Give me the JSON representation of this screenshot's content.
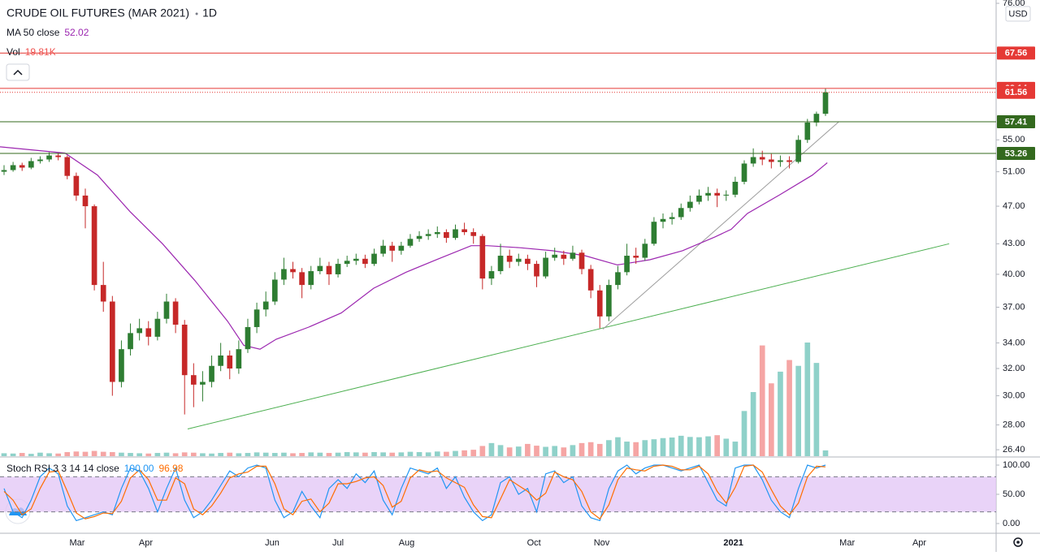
{
  "chart_data": {
    "type": "candlestick",
    "title": "CRUDE OIL FUTURES (MAR 2021)",
    "interval": "1D",
    "currency": "USD",
    "log": true,
    "grid": false,
    "up_color": "#2e7d32",
    "down_color": "#c62828",
    "xlim": [
      -0.45,
      109.8
    ],
    "xticks": [
      {
        "value": 8.1,
        "label": "Mar"
      },
      {
        "value": 15.7,
        "label": "Apr"
      },
      {
        "value": 29.7,
        "label": "Jun"
      },
      {
        "value": 37.0,
        "label": "Jul"
      },
      {
        "value": 44.6,
        "label": "Aug"
      },
      {
        "value": 58.7,
        "label": "Oct"
      },
      {
        "value": 66.2,
        "label": "Nov"
      },
      {
        "value": 80.8,
        "label": "2021",
        "bold": true
      },
      {
        "value": 93.4,
        "label": "Mar"
      },
      {
        "value": 101.4,
        "label": "Apr"
      }
    ],
    "ylim": [
      26,
      76.6
    ],
    "yticks": [
      {
        "value": 76,
        "label": "76.00"
      },
      {
        "value": 55,
        "label": "55.00"
      },
      {
        "value": 51,
        "label": "51.00"
      },
      {
        "value": 47,
        "label": "47.00"
      },
      {
        "value": 43,
        "label": "43.00"
      },
      {
        "value": 40,
        "label": "40.00"
      },
      {
        "value": 37,
        "label": "37.00"
      },
      {
        "value": 34,
        "label": "34.00"
      },
      {
        "value": 32,
        "label": "32.00"
      },
      {
        "value": 30,
        "label": "30.00"
      },
      {
        "value": 28,
        "label": "28.00"
      },
      {
        "value": 26.4,
        "label": "26.40"
      }
    ],
    "open": [
      51.0,
      51.2,
      51.8,
      51.5,
      52.3,
      52.5,
      53.0,
      52.8,
      50.5,
      48.2,
      47.0,
      39.0,
      37.5,
      31.0,
      33.5,
      34.8,
      35.2,
      34.5,
      36.0,
      37.5,
      35.5,
      31.5,
      30.8,
      31.0,
      32.2,
      33.0,
      32.0,
      33.5,
      35.3,
      36.8,
      37.5,
      39.5,
      40.5,
      40.2,
      39.0,
      40.3,
      40.8,
      40.0,
      41.0,
      41.3,
      41.5,
      41.0,
      42.0,
      42.8,
      42.3,
      42.8,
      43.5,
      43.8,
      44.0,
      44.2,
      43.6,
      44.5,
      44.2,
      43.8,
      39.6,
      40.3,
      41.8,
      41.2,
      41.5,
      41.0,
      39.8,
      41.6,
      41.9,
      41.5,
      42.1,
      40.5,
      38.5,
      36.2,
      39.0,
      40.2,
      41.8,
      41.6,
      43.0,
      45.3,
      45.6,
      45.8,
      46.8,
      47.5,
      48.2,
      48.5,
      48.2,
      48.3,
      49.8,
      52.0,
      52.8,
      52.5,
      52.2,
      52.4,
      52.2,
      55.0,
      57.3,
      58.5
    ],
    "high": [
      51.8,
      52.2,
      52.1,
      52.7,
      52.9,
      53.4,
      53.3,
      53.0,
      50.9,
      49.0,
      47.2,
      41.2,
      38.0,
      34.2,
      35.6,
      36.0,
      35.8,
      36.6,
      38.2,
      37.8,
      35.9,
      32.4,
      31.8,
      33.0,
      34.0,
      33.4,
      34.2,
      36.0,
      37.4,
      38.4,
      40.2,
      41.6,
      41.2,
      40.6,
      40.8,
      41.6,
      41.2,
      41.5,
      41.8,
      42.0,
      41.9,
      42.5,
      43.4,
      43.2,
      43.2,
      44.0,
      44.3,
      44.5,
      44.8,
      44.5,
      45.0,
      45.2,
      44.6,
      44.0,
      40.8,
      43.0,
      42.4,
      42.0,
      41.9,
      41.3,
      42.2,
      42.6,
      42.3,
      42.8,
      42.4,
      40.9,
      39.0,
      39.5,
      40.8,
      43.0,
      42.6,
      43.5,
      45.8,
      46.2,
      46.3,
      47.3,
      48.2,
      48.9,
      49.2,
      49.0,
      48.8,
      50.4,
      52.4,
      53.9,
      53.6,
      53.2,
      53.0,
      52.9,
      55.6,
      57.8,
      58.8,
      62.1
    ],
    "low": [
      50.6,
      51.0,
      51.1,
      51.3,
      52.0,
      52.2,
      52.4,
      50.1,
      47.6,
      44.6,
      38.5,
      36.6,
      30.0,
      30.6,
      33.0,
      34.2,
      33.8,
      34.2,
      35.6,
      34.8,
      28.7,
      29.2,
      29.6,
      30.6,
      31.8,
      31.2,
      31.6,
      33.2,
      34.8,
      36.2,
      37.2,
      39.0,
      39.6,
      37.8,
      38.6,
      40.0,
      39.0,
      39.7,
      40.7,
      40.9,
      40.6,
      40.8,
      41.7,
      41.2,
      41.9,
      42.6,
      43.2,
      43.4,
      43.6,
      43.1,
      43.4,
      43.9,
      43.0,
      38.6,
      39.0,
      40.0,
      40.6,
      40.8,
      40.4,
      38.8,
      39.6,
      41.3,
      40.9,
      41.3,
      40.0,
      37.8,
      35.2,
      35.8,
      38.6,
      39.9,
      41.0,
      41.3,
      42.8,
      44.6,
      45.0,
      45.5,
      46.4,
      47.2,
      47.6,
      46.9,
      47.6,
      48.0,
      49.5,
      51.6,
      51.8,
      51.4,
      51.6,
      51.4,
      52.0,
      54.6,
      56.8,
      58.2
    ],
    "close": [
      51.2,
      51.8,
      51.5,
      52.3,
      52.5,
      53.0,
      52.8,
      50.5,
      48.2,
      47.0,
      39.0,
      37.5,
      31.0,
      33.5,
      34.8,
      35.2,
      34.5,
      36.0,
      37.5,
      35.5,
      31.5,
      30.8,
      31.0,
      32.2,
      33.0,
      32.0,
      33.5,
      35.3,
      36.8,
      37.5,
      39.5,
      40.5,
      40.2,
      39.0,
      40.3,
      40.8,
      40.0,
      41.0,
      41.3,
      41.5,
      41.0,
      42.0,
      42.8,
      42.3,
      42.8,
      43.5,
      43.8,
      44.0,
      44.2,
      43.6,
      44.5,
      44.2,
      43.8,
      39.6,
      40.3,
      41.8,
      41.2,
      41.5,
      41.0,
      39.8,
      41.6,
      41.9,
      41.5,
      42.1,
      40.5,
      38.5,
      36.2,
      39.0,
      40.2,
      41.8,
      41.6,
      43.0,
      45.3,
      45.6,
      45.8,
      46.8,
      47.5,
      48.2,
      48.5,
      48.2,
      48.3,
      49.8,
      52.0,
      52.8,
      52.5,
      52.2,
      52.4,
      52.2,
      55.0,
      57.3,
      58.5,
      61.56
    ],
    "ma": {
      "name": "MA 50 close",
      "value_label": "52.02",
      "color": "#9c27b0",
      "x": [
        -0.45,
        6.75,
        10.35,
        13.95,
        17.55,
        21.15,
        24.75,
        26.55,
        28.35,
        30.15,
        33.75,
        37.35,
        40.95,
        44.55,
        48.15,
        51.75,
        53.55,
        57.15,
        60.75,
        64.35,
        67.95,
        71.55,
        75.15,
        78.75,
        80.55,
        82.35,
        85.95,
        89.55,
        91.2
      ],
      "values": [
        54.1,
        53.3,
        50.6,
        46.4,
        43.0,
        39.4,
        35.8,
        33.8,
        33.5,
        34.3,
        35.3,
        36.5,
        38.7,
        40.2,
        41.5,
        42.8,
        42.8,
        42.6,
        42.3,
        41.8,
        40.9,
        41.4,
        42.3,
        43.7,
        44.5,
        46.2,
        48.3,
        50.6,
        52.1
      ]
    },
    "volume": {
      "name": "Vol",
      "color": "#ef5350",
      "up_color": "#8fd1c9",
      "down_color": "#f5a5a4",
      "last": {
        "value": 19.81,
        "label": "19.81K"
      },
      "values": [
        10,
        9,
        11,
        8,
        12,
        10,
        9,
        14,
        16,
        15,
        18,
        15,
        14,
        12,
        11,
        10,
        9,
        11,
        12,
        10,
        13,
        12,
        10,
        9,
        11,
        12,
        10,
        11,
        13,
        12,
        11,
        12,
        10,
        11,
        13,
        12,
        11,
        12,
        14,
        13,
        12,
        14,
        13,
        12,
        13,
        15,
        14,
        13,
        16,
        15,
        18,
        20,
        22,
        35,
        45,
        38,
        30,
        33,
        42,
        36,
        32,
        35,
        30,
        38,
        45,
        48,
        42,
        55,
        65,
        50,
        48,
        55,
        58,
        62,
        64,
        70,
        66,
        65,
        68,
        72,
        60,
        50,
        155,
        220,
        380,
        250,
        290,
        330,
        310,
        390,
        320,
        19.81
      ]
    },
    "levels": [
      {
        "value": 67.56,
        "color": "#e53935",
        "style": "solid"
      },
      {
        "value": 62.14,
        "color": "#e53935",
        "style": "solid"
      },
      {
        "value": 61.56,
        "color": "#e53935",
        "style": "dotted"
      },
      {
        "value": 57.41,
        "color": "#33691e",
        "style": "solid"
      },
      {
        "value": 53.26,
        "color": "#33691e",
        "style": "solid"
      }
    ],
    "trendlines": [
      {
        "color": "#4caf50",
        "x": [
          20.34,
          104.7
        ],
        "y": [
          27.73,
          43.0
        ]
      },
      {
        "color": "#9e9e9e",
        "x": [
          66.34,
          92.44
        ],
        "y": [
          35.13,
          57.37
        ]
      }
    ],
    "stoch": {
      "name": "Stoch RSI 3 3 14 14 close",
      "ylim": [
        -13.9,
        111.1
      ],
      "yticks": [
        {
          "value": 100,
          "label": "100.00"
        },
        {
          "value": 50,
          "label": "50.00"
        },
        {
          "value": 0,
          "label": "0.00"
        }
      ],
      "band": [
        20,
        80
      ],
      "band_color": "#e1c4f5",
      "series": [
        {
          "color": "#2196f3",
          "last_label": "100.00",
          "values": [
            60,
            20,
            10,
            40,
            80,
            95,
            85,
            30,
            5,
            10,
            15,
            20,
            15,
            60,
            95,
            90,
            60,
            20,
            60,
            95,
            40,
            10,
            20,
            40,
            65,
            90,
            80,
            95,
            100,
            95,
            40,
            10,
            20,
            55,
            30,
            10,
            60,
            75,
            60,
            85,
            70,
            90,
            40,
            15,
            60,
            95,
            90,
            85,
            95,
            60,
            80,
            45,
            20,
            5,
            15,
            70,
            80,
            50,
            60,
            20,
            85,
            90,
            70,
            80,
            30,
            10,
            5,
            60,
            90,
            100,
            85,
            95,
            100,
            100,
            95,
            90,
            95,
            100,
            70,
            40,
            30,
            95,
            100,
            100,
            75,
            40,
            20,
            10,
            60,
            100,
            95,
            100
          ]
        },
        {
          "color": "#ff6d00",
          "last_label": "96.98",
          "values": [
            55,
            40,
            15,
            25,
            60,
            88,
            90,
            55,
            18,
            8,
            12,
            18,
            17,
            38,
            78,
            92,
            75,
            40,
            40,
            78,
            68,
            25,
            15,
            30,
            52,
            78,
            85,
            88,
            98,
            98,
            68,
            25,
            15,
            38,
            42,
            20,
            35,
            68,
            68,
            72,
            78,
            80,
            65,
            28,
            38,
            78,
            92,
            88,
            90,
            78,
            70,
            62,
            32,
            12,
            10,
            42,
            75,
            65,
            55,
            40,
            52,
            88,
            80,
            75,
            55,
            20,
            8,
            32,
            75,
            95,
            92,
            90,
            98,
            100,
            98,
            92,
            92,
            98,
            85,
            55,
            35,
            62,
            98,
            100,
            88,
            58,
            30,
            15,
            35,
            80,
            98,
            96.98
          ]
        }
      ]
    }
  }
}
